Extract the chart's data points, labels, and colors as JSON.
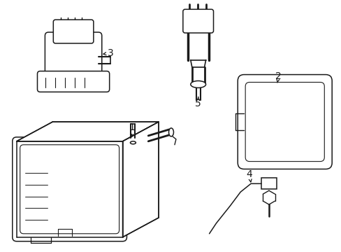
{
  "background_color": "#ffffff",
  "line_color": "#1a1a1a",
  "line_width": 1.1,
  "label_fontsize": 10,
  "figsize": [
    4.89,
    3.6
  ],
  "dpi": 100
}
